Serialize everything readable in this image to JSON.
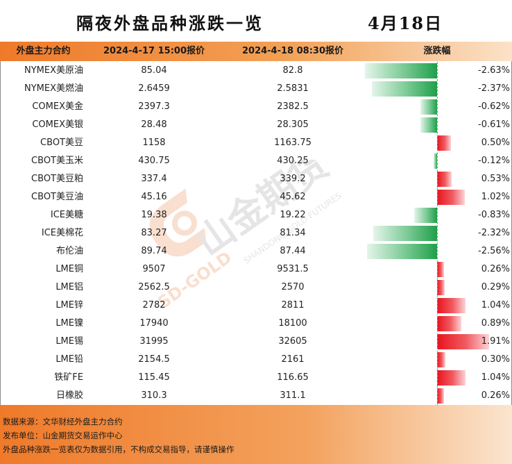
{
  "title": "隔夜外盘品种涨跌一览",
  "date": "4月18日",
  "headers": {
    "name": "外盘主力合约",
    "price1": "2024-4-17 15:00报价",
    "price2": "2024-4-18 08:30报价",
    "change": "涨跌幅"
  },
  "rows": [
    {
      "name": "NYMEX美原油",
      "p1": "85.04",
      "p2": "82.8",
      "pct": "-2.63%",
      "v": -2.63
    },
    {
      "name": "NYMEX美燃油",
      "p1": "2.6459",
      "p2": "2.5831",
      "pct": "-2.37%",
      "v": -2.37
    },
    {
      "name": "COMEX美金",
      "p1": "2397.3",
      "p2": "2382.5",
      "pct": "-0.62%",
      "v": -0.62
    },
    {
      "name": "COMEX美银",
      "p1": "28.48",
      "p2": "28.305",
      "pct": "-0.61%",
      "v": -0.61
    },
    {
      "name": "CBOT美豆",
      "p1": "1158",
      "p2": "1163.75",
      "pct": "0.50%",
      "v": 0.5
    },
    {
      "name": "CBOT美玉米",
      "p1": "430.75",
      "p2": "430.25",
      "pct": "-0.12%",
      "v": -0.12
    },
    {
      "name": "CBOT美豆粕",
      "p1": "337.4",
      "p2": "339.2",
      "pct": "0.53%",
      "v": 0.53
    },
    {
      "name": "CBOT美豆油",
      "p1": "45.16",
      "p2": "45.62",
      "pct": "1.02%",
      "v": 1.02
    },
    {
      "name": "ICE美糖",
      "p1": "19.38",
      "p2": "19.22",
      "pct": "-0.83%",
      "v": -0.83
    },
    {
      "name": "ICE美棉花",
      "p1": "83.27",
      "p2": "81.34",
      "pct": "-2.32%",
      "v": -2.32
    },
    {
      "name": "布伦油",
      "p1": "89.74",
      "p2": "87.44",
      "pct": "-2.56%",
      "v": -2.56
    },
    {
      "name": "LME铜",
      "p1": "9507",
      "p2": "9531.5",
      "pct": "0.26%",
      "v": 0.26
    },
    {
      "name": "LME铝",
      "p1": "2562.5",
      "p2": "2570",
      "pct": "0.29%",
      "v": 0.29
    },
    {
      "name": "LME锌",
      "p1": "2782",
      "p2": "2811",
      "pct": "1.04%",
      "v": 1.04
    },
    {
      "name": "LME镍",
      "p1": "17940",
      "p2": "18100",
      "pct": "0.89%",
      "v": 0.89
    },
    {
      "name": "LME锡",
      "p1": "31995",
      "p2": "32605",
      "pct": "1.91%",
      "v": 1.91
    },
    {
      "name": "LME铅",
      "p1": "2154.5",
      "p2": "2161",
      "pct": "0.30%",
      "v": 0.3
    },
    {
      "name": "铁矿FE",
      "p1": "115.45",
      "p2": "116.65",
      "pct": "1.04%",
      "v": 1.04
    },
    {
      "name": "日橡胶",
      "p1": "310.3",
      "p2": "311.1",
      "pct": "0.26%",
      "v": 0.26
    }
  ],
  "footer": {
    "source": "数据来源：文华财经外盘主力合约",
    "publisher": "发布单位：山金期货交易运作中心",
    "disclaimer": "外盘品种涨跌一览表仅为数据引用，不构成交易指导，请谨慎操作"
  },
  "watermark": {
    "cn": "山金期货",
    "en": "SHANDONG GOLD FUTURES",
    "logo_text": "SD-GOLD"
  },
  "colors": {
    "header_orange": "#ef7a2a",
    "negative_green": "#1fa04a",
    "positive_red": "#e8141e"
  }
}
